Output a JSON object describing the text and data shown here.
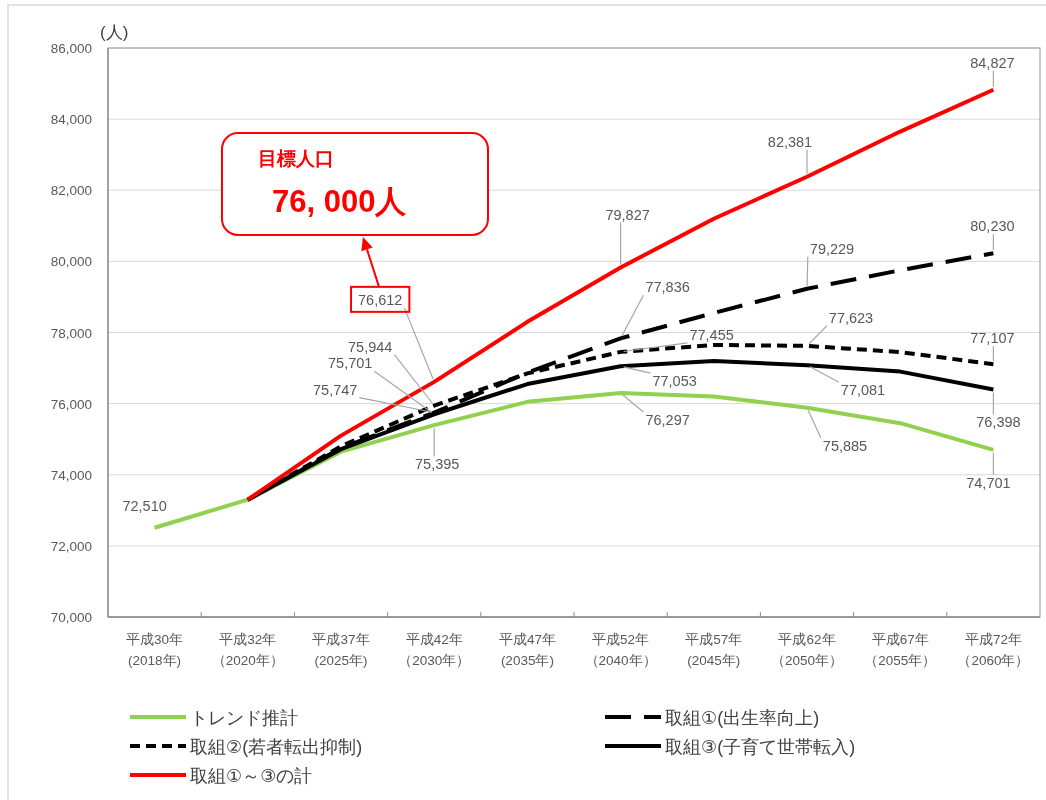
{
  "chart_data": {
    "type": "line",
    "ylabel": "(人)",
    "categories": [
      "平成30年\n(2018年)",
      "平成32年（2020年）",
      "平成37年\n(2025年)",
      "平成42年（2030年）",
      "平成47年\n(2035年)",
      "平成52年（2040年）",
      "平成57年\n(2045年)",
      "平成62年（2050年）",
      "平成67年（2055年）",
      "平成72年（2060年）"
    ],
    "ylim": [
      70000,
      86000
    ],
    "yticks": [
      {
        "value": 70000,
        "label": "70,000"
      },
      {
        "value": 72000,
        "label": "72,000"
      },
      {
        "value": 74000,
        "label": "74,000"
      },
      {
        "value": 76000,
        "label": "76,000"
      },
      {
        "value": 78000,
        "label": "78,000"
      },
      {
        "value": 80000,
        "label": "80,000"
      },
      {
        "value": 82000,
        "label": "82,000"
      },
      {
        "value": 84000,
        "label": "84,000"
      },
      {
        "value": 86000,
        "label": "86,000"
      }
    ],
    "grid": "y",
    "legend": "bottom",
    "series": [
      {
        "name": "トレンド推計",
        "color": "#92d050",
        "line_style": "solid",
        "values": [
          72510,
          73300,
          74650,
          75395,
          76050,
          76297,
          76200,
          75885,
          75450,
          74701
        ],
        "value_labels": [
          "72,510",
          null,
          null,
          "75,395",
          null,
          "76,297",
          null,
          "75,885",
          null,
          "74,701"
        ]
      },
      {
        "name": "取組①(出生率向上)",
        "color": "#000000",
        "line_style": "dashed",
        "values": [
          null,
          73300,
          74750,
          75747,
          76870,
          77836,
          78550,
          79229,
          79750,
          80230
        ],
        "value_labels": [
          null,
          null,
          null,
          "75,747",
          null,
          "77,836",
          null,
          "79,229",
          null,
          "80,230"
        ]
      },
      {
        "name": "取組②(若者転出抑制)",
        "color": "#000000",
        "line_style": "dotted",
        "values": [
          null,
          73300,
          74800,
          75944,
          76850,
          77455,
          77650,
          77623,
          77450,
          77107
        ],
        "value_labels": [
          null,
          null,
          null,
          "75,944",
          null,
          "77,455",
          null,
          "77,623",
          null,
          "77,107"
        ]
      },
      {
        "name": "取組③(子育て世帯転入)",
        "color": "#000000",
        "line_style": "solid",
        "values": [
          null,
          73300,
          74720,
          75701,
          76550,
          77053,
          77200,
          77081,
          76900,
          76398
        ],
        "value_labels": [
          null,
          null,
          null,
          "75,701",
          null,
          "77,053",
          null,
          "77,081",
          null,
          "76,398"
        ]
      },
      {
        "name": "取組①～③の計",
        "color": "#ff0000",
        "line_style": "solid",
        "values": [
          null,
          73300,
          75100,
          76612,
          78300,
          79827,
          81200,
          82381,
          83650,
          84827
        ],
        "value_labels": [
          null,
          null,
          null,
          "76,612",
          null,
          "79,827",
          null,
          "82,381",
          null,
          "84,827"
        ]
      }
    ],
    "annotations": [
      "目標人口\n76, 000人"
    ]
  }
}
